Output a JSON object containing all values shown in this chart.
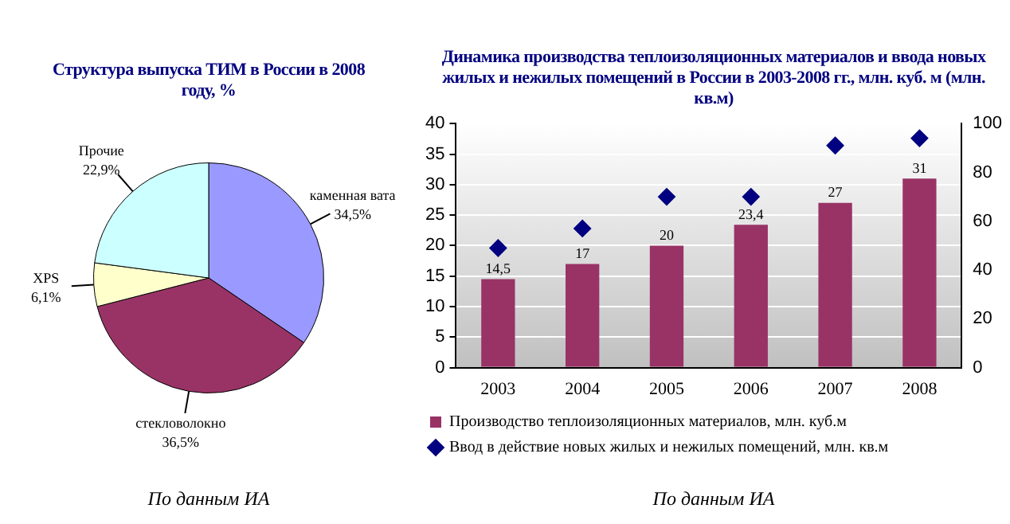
{
  "chart_data": [
    {
      "type": "pie",
      "title": "Структура выпуска ТИМ в России в 2008 году, %",
      "categories": [
        "каменная вата",
        "стекловолокно",
        "XPS",
        "Прочие"
      ],
      "values": [
        34.5,
        36.5,
        6.1,
        22.9
      ],
      "colors": [
        "#9999ff",
        "#993366",
        "#ffffcc",
        "#ccffff"
      ],
      "value_labels": [
        "34,5%",
        "36,5%",
        "6,1%",
        "22,9%"
      ],
      "legend": false,
      "annotations": [
        "По данным ИА"
      ]
    },
    {
      "type": "bar",
      "title": "Динамика производства теплоизоляционных материалов и ввода новых жилых и нежилых помещений  в России в 2003-2008 гг., млн. куб. м (млн. кв.м)",
      "categories": [
        "2003",
        "2004",
        "2005",
        "2006",
        "2007",
        "2008"
      ],
      "series": [
        {
          "name": "Производство теплоизоляционных материалов, млн. куб.м",
          "type": "bar",
          "color": "#993366",
          "values": [
            14.5,
            17,
            20,
            23.4,
            27,
            31
          ],
          "value_labels": [
            "14,5",
            "17",
            "20",
            "23,4",
            "27",
            "31"
          ]
        },
        {
          "name": "Ввод в действие новых жилых и нежилых помещений, млн. кв.м",
          "type": "scatter",
          "axis": "y2",
          "marker": "diamond",
          "color": "#000080",
          "values": [
            49,
            57,
            70,
            70,
            91,
            94
          ]
        }
      ],
      "ylim": [
        0,
        40
      ],
      "yticks": [
        0,
        5,
        10,
        15,
        20,
        25,
        30,
        35,
        40
      ],
      "y2lim": [
        0,
        100
      ],
      "y2ticks": [
        0,
        20,
        40,
        60,
        80,
        100
      ],
      "grid": "y",
      "legend": "bottom",
      "annotations": [
        "По данным ИА"
      ]
    }
  ]
}
